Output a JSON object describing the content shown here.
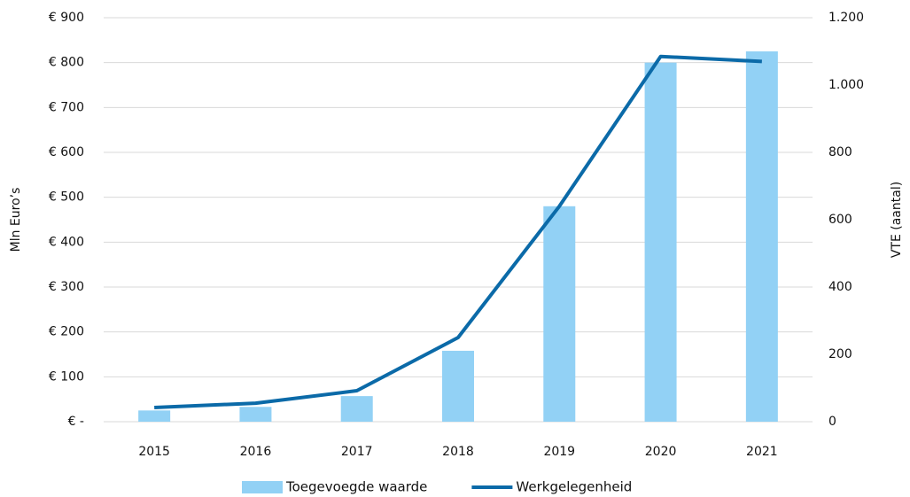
{
  "chart_data": {
    "type": "bar",
    "categories": [
      "2015",
      "2016",
      "2017",
      "2018",
      "2019",
      "2020",
      "2021"
    ],
    "series": [
      {
        "name": "Toegevoegde waarde",
        "type": "bar",
        "color": "#92d1f5",
        "values": [
          25,
          33,
          57,
          158,
          480,
          800,
          825
        ]
      },
      {
        "name": "Werkgelegenheid",
        "type": "line",
        "axis": "y2",
        "color": "#0b6aa8",
        "values": [
          42,
          55,
          92,
          250,
          640,
          1085,
          1070
        ]
      }
    ],
    "ylabel": "Mln Euro’s",
    "y2label": "VTE (aantal)",
    "ylim": [
      0,
      900
    ],
    "yticks": [
      {
        "value": 0,
        "label": "€ -"
      },
      {
        "value": 100,
        "label": "€ 100"
      },
      {
        "value": 200,
        "label": "€ 200"
      },
      {
        "value": 300,
        "label": "€ 300"
      },
      {
        "value": 400,
        "label": "€ 400"
      },
      {
        "value": 500,
        "label": "€ 500"
      },
      {
        "value": 600,
        "label": "€ 600"
      },
      {
        "value": 700,
        "label": "€ 700"
      },
      {
        "value": 800,
        "label": "€ 800"
      },
      {
        "value": 900,
        "label": "€ 900"
      }
    ],
    "y2lim": [
      0,
      1200
    ],
    "y2ticks": [
      0,
      200,
      400,
      600,
      800,
      {
        "value": 1000,
        "label": "1.000"
      },
      {
        "value": 1200,
        "label": "1.200"
      }
    ],
    "grid": true,
    "legend": "bottom"
  }
}
